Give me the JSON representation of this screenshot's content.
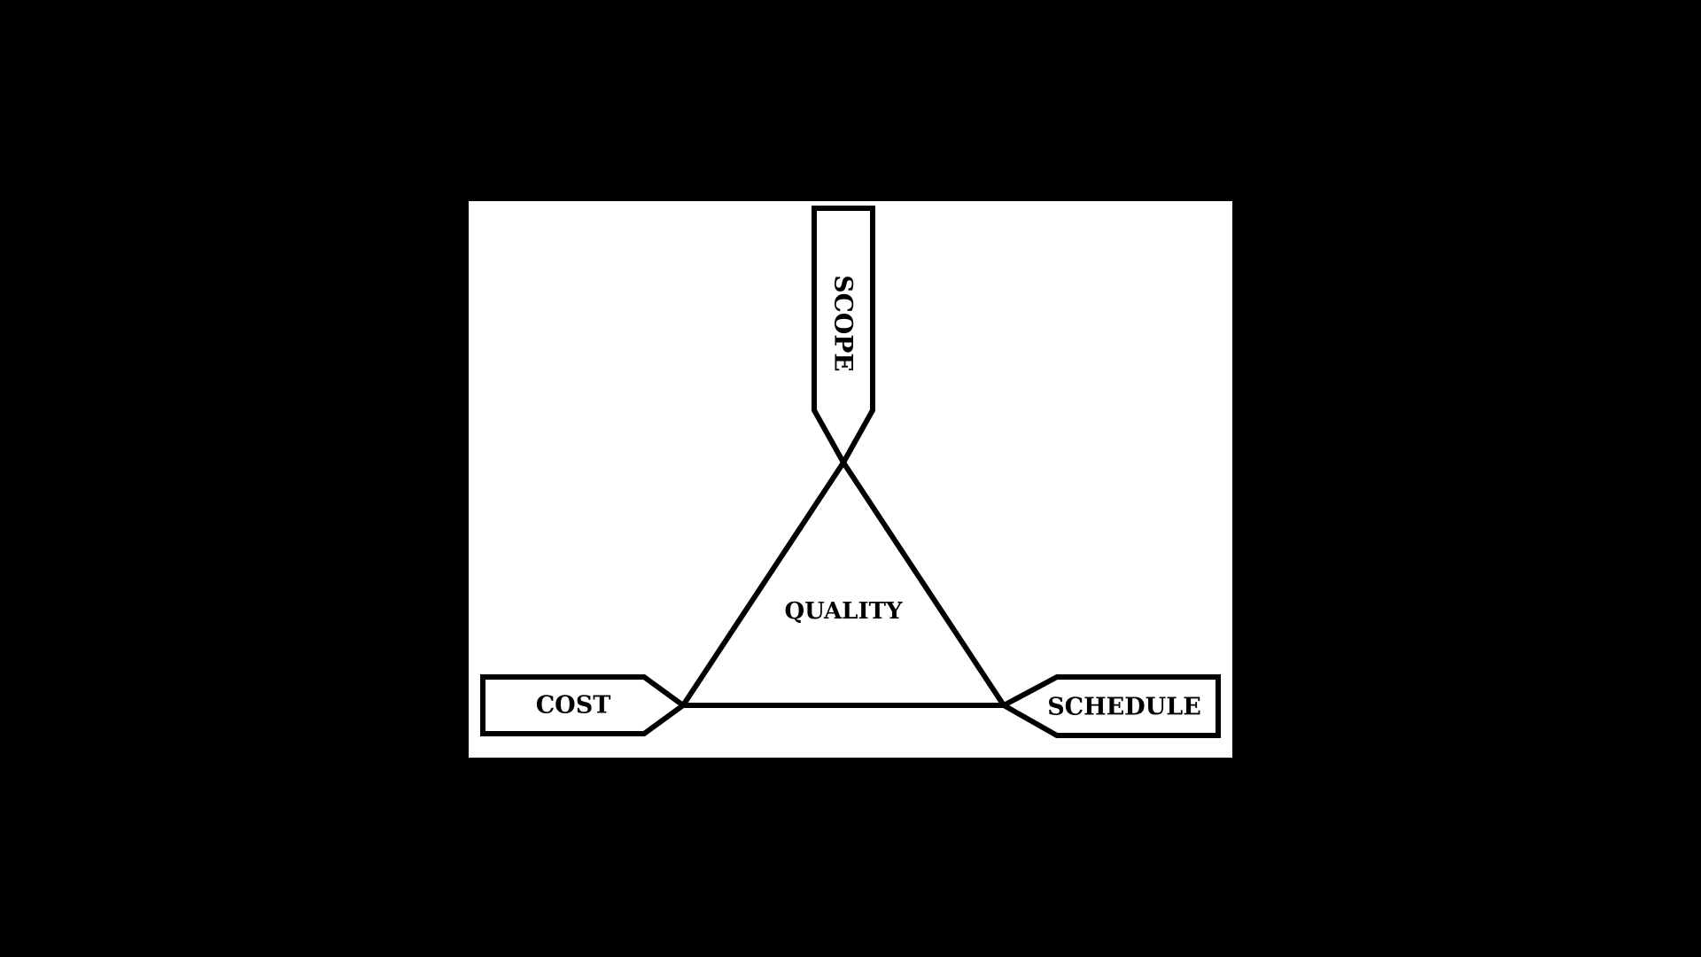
{
  "diagram": {
    "labels": {
      "top": "SCOPE",
      "left": "COST",
      "right": "SCHEDULE",
      "center": "QUALITY"
    },
    "colors": {
      "background": "#000000",
      "panel": "#ffffff",
      "stroke": "#000000"
    }
  }
}
